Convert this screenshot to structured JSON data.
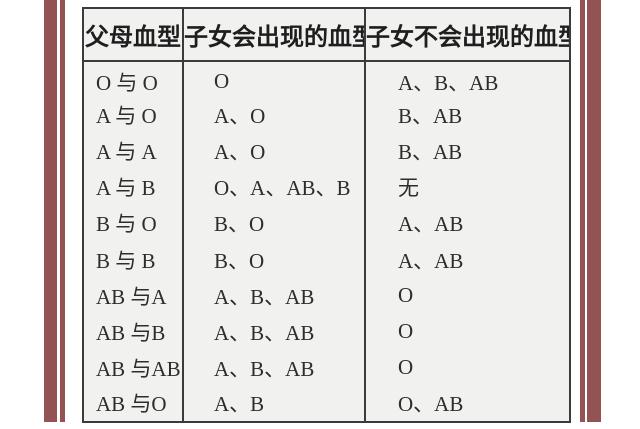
{
  "frame": {
    "accent_color": "#935353"
  },
  "table": {
    "headers": [
      "父母血型",
      "子女会出现的血型",
      "子女不会出现的血型"
    ],
    "rows": [
      [
        "O 与 O",
        "O",
        "A、B、AB"
      ],
      [
        "A 与 O",
        "A、O",
        "B、AB"
      ],
      [
        "A 与 A",
        "A、O",
        "B、AB"
      ],
      [
        "A 与 B",
        "O、A、AB、B",
        "无"
      ],
      [
        "B 与 O",
        "B、O",
        "A、AB"
      ],
      [
        "B 与 B",
        "B、O",
        "A、AB"
      ],
      [
        "AB 与A",
        "A、B、AB",
        "O"
      ],
      [
        "AB 与B",
        "A、B、AB",
        "O"
      ],
      [
        "AB 与AB",
        "A、B、AB",
        "O"
      ],
      [
        "AB 与O",
        "A、B",
        "O、AB"
      ]
    ],
    "colors": {
      "table_background": "#f1f1ef",
      "border": "#3b3b3b",
      "text": "#2d2d2d"
    }
  }
}
